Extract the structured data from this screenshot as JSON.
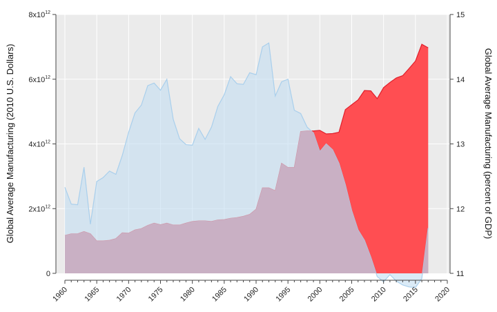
{
  "chart_data": {
    "type": "area",
    "title": "",
    "ylabel_left": "Global Average Manufacturing (2010 U.S. Dollars)",
    "ylabel_right": "Global Average Manufacturing (percent of GDP)",
    "xlabel": "",
    "xlim": [
      1960,
      2020
    ],
    "ylim_left": [
      0,
      8
    ],
    "ylim_right": [
      11,
      15
    ],
    "x_ticks": [
      "1960",
      "1965",
      "1970",
      "1975",
      "1980",
      "1985",
      "1990",
      "1995",
      "2000",
      "2005",
      "2010",
      "2015",
      "2020"
    ],
    "y_left_ticks": [
      {
        "value": 0,
        "label": "0"
      },
      {
        "value": 2,
        "label": "2x10",
        "exp": "12"
      },
      {
        "value": 4,
        "label": "4x10",
        "exp": "12"
      },
      {
        "value": 6,
        "label": "6x10",
        "exp": "12"
      },
      {
        "value": 8,
        "label": "8x10",
        "exp": "12"
      }
    ],
    "y_right_ticks": [
      "11",
      "12",
      "13",
      "14",
      "15"
    ],
    "grid": true,
    "legend": "none",
    "colors": {
      "percent_gdp_area": "#c5dff2",
      "percent_gdp_line": "#a9cfec",
      "dollars_area": "#ff4e52",
      "dollars_line": "#e01e2a",
      "plot_background": "#ebebeb",
      "grid": "#ffffff",
      "overlap_tint": "#c9b0c4"
    },
    "series": [
      {
        "axis": "right",
        "units": "percent of GDP",
        "x": [
          1960,
          1961,
          1962,
          1963,
          1964,
          1965,
          1966,
          1967,
          1968,
          1969,
          1970,
          1971,
          1972,
          1973,
          1974,
          1975,
          1976,
          1977,
          1978,
          1979,
          1980,
          1981,
          1982,
          1983,
          1984,
          1985,
          1986,
          1987,
          1988,
          1989,
          1990,
          1991,
          1992,
          1993,
          1994,
          1995,
          1996,
          1997,
          1998,
          1999,
          2000,
          2001,
          2002,
          2003,
          2004,
          2005,
          2006,
          2007,
          2008,
          2009,
          2010,
          2011,
          2012,
          2013,
          2014,
          2015,
          2016,
          2017
        ],
        "values": [
          12.33,
          12.07,
          12.06,
          12.64,
          11.76,
          12.42,
          12.48,
          12.58,
          12.53,
          12.82,
          13.18,
          13.48,
          13.6,
          13.9,
          13.94,
          13.83,
          14.0,
          13.38,
          13.08,
          12.99,
          12.98,
          13.24,
          13.07,
          13.26,
          13.58,
          13.76,
          14.04,
          13.93,
          13.92,
          14.1,
          14.07,
          14.5,
          14.56,
          13.74,
          13.96,
          14.0,
          13.52,
          13.47,
          13.26,
          13.17,
          12.88,
          13.0,
          12.91,
          12.7,
          12.37,
          11.97,
          11.67,
          11.51,
          11.25,
          10.95,
          10.87,
          10.98,
          10.88,
          10.82,
          10.79,
          10.78,
          10.92,
          11.7
        ]
      },
      {
        "axis": "left",
        "units": "x10^12 2010 U.S. Dollars",
        "x": [
          1960,
          1961,
          1962,
          1963,
          1964,
          1965,
          1966,
          1967,
          1968,
          1969,
          1970,
          1971,
          1972,
          1973,
          1974,
          1975,
          1976,
          1977,
          1978,
          1979,
          1980,
          1981,
          1982,
          1983,
          1984,
          1985,
          1986,
          1987,
          1988,
          1989,
          1990,
          1991,
          1992,
          1993,
          1994,
          1995,
          1996,
          1997,
          1998,
          1999,
          2000,
          2001,
          2002,
          2003,
          2004,
          2005,
          2006,
          2007,
          2008,
          2009,
          2010,
          2011,
          2012,
          2013,
          2014,
          2015,
          2016,
          2017
        ],
        "values": [
          1.17,
          1.22,
          1.22,
          1.29,
          1.22,
          1.0,
          1.0,
          1.02,
          1.07,
          1.25,
          1.24,
          1.34,
          1.38,
          1.48,
          1.55,
          1.5,
          1.55,
          1.49,
          1.49,
          1.55,
          1.6,
          1.62,
          1.62,
          1.6,
          1.65,
          1.66,
          1.7,
          1.72,
          1.76,
          1.82,
          1.98,
          2.64,
          2.64,
          2.55,
          3.4,
          3.27,
          3.27,
          4.38,
          4.4,
          4.4,
          4.42,
          4.31,
          4.32,
          4.36,
          5.06,
          5.21,
          5.36,
          5.65,
          5.64,
          5.4,
          5.74,
          5.9,
          6.04,
          6.11,
          6.33,
          6.56,
          7.08,
          6.97
        ]
      }
    ]
  }
}
